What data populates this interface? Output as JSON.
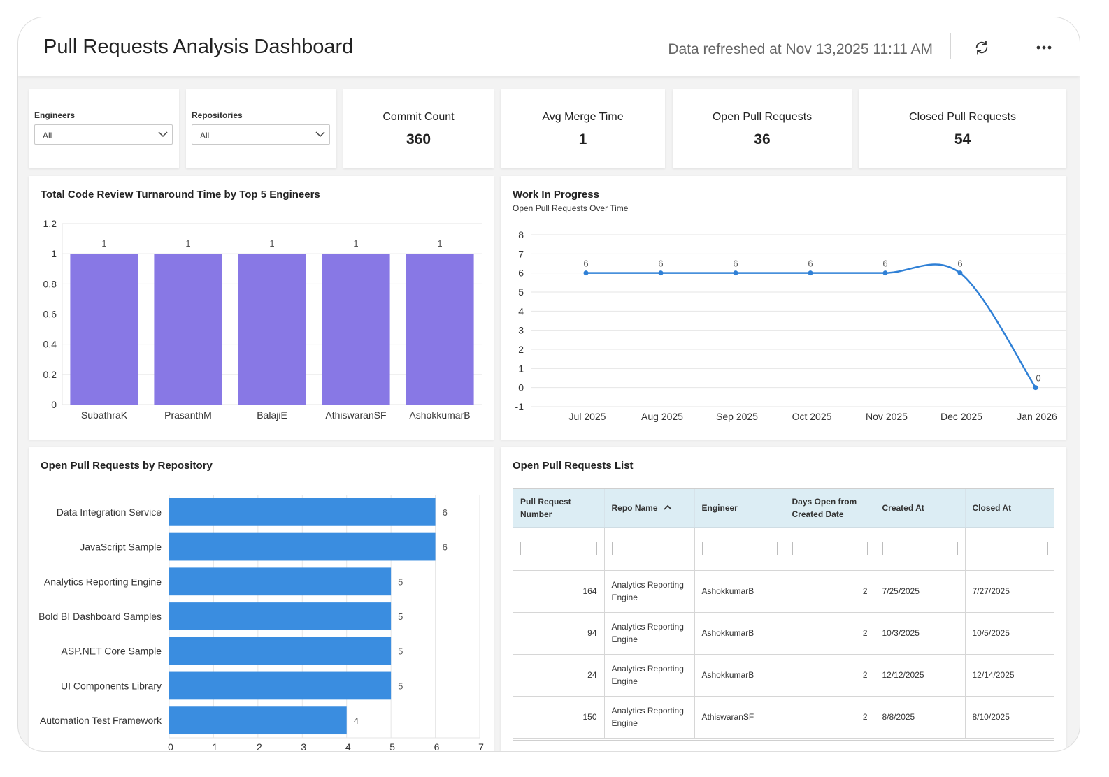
{
  "header": {
    "title": "Pull Requests Analysis Dashboard",
    "refresh_text": "Data refreshed at Nov 13,2025 11:11 AM",
    "refresh_icon": "refresh-icon",
    "more_icon": "more-horizontal-icon"
  },
  "filters": [
    {
      "label": "Engineers",
      "value": "All"
    },
    {
      "label": "Repositories",
      "value": "All"
    }
  ],
  "kpis": [
    {
      "title": "Commit Count",
      "value": "360"
    },
    {
      "title": "Avg Merge Time",
      "value": "1"
    },
    {
      "title": "Open Pull Requests",
      "value": "36"
    },
    {
      "title": "Closed Pull Requests",
      "value": "54"
    }
  ],
  "colors": {
    "bar_purple": "#8878e5",
    "bar_blue": "#3a8de0",
    "line_blue": "#2f80d6",
    "table_header": "#dcedf4"
  },
  "chart_data": [
    {
      "type": "bar",
      "title": "Total Code Review Turnaround Time by Top 5 Engineers",
      "categories": [
        "SubathraK",
        "PrasanthM",
        "BalajiE",
        "AthiswaranSF",
        "AshokkumarB"
      ],
      "values": [
        1,
        1,
        1,
        1,
        1
      ],
      "ylim": [
        0,
        1.2
      ],
      "yticks": [
        "0",
        "0.2",
        "0.4",
        "0.6",
        "0.8",
        "1",
        "1.2"
      ],
      "grid": true
    },
    {
      "type": "line",
      "title": "Work In Progress",
      "subtitle": "Open Pull Requests Over Time",
      "categories": [
        "Jul 2025",
        "Aug 2025",
        "Sep 2025",
        "Oct 2025",
        "Nov 2025",
        "Dec 2025",
        "Jan 2026"
      ],
      "values": [
        6,
        6,
        6,
        6,
        6,
        6,
        0
      ],
      "ylim": [
        -1,
        8
      ],
      "yticks": [
        "-1",
        "0",
        "1",
        "2",
        "3",
        "4",
        "5",
        "6",
        "7",
        "8"
      ],
      "grid": true
    },
    {
      "type": "bar",
      "orientation": "horizontal",
      "title": "Open Pull Requests by Repository",
      "categories": [
        "Data Integration Service",
        "JavaScript Sample",
        "Analytics Reporting Engine",
        "Bold BI Dashboard Samples",
        "ASP.NET Core Sample",
        "UI Components Library",
        "Automation Test Framework"
      ],
      "values": [
        6,
        6,
        5,
        5,
        5,
        5,
        4
      ],
      "xlim": [
        0,
        7
      ],
      "xticks": [
        "0",
        "1",
        "2",
        "3",
        "4",
        "5",
        "6",
        "7"
      ],
      "grid": true
    }
  ],
  "table": {
    "title": "Open Pull Requests List",
    "columns": [
      {
        "label": "Pull Request Number"
      },
      {
        "label": "Repo Name",
        "sort_icon": "chevron-up-icon"
      },
      {
        "label": "Engineer"
      },
      {
        "label": "Days Open from Created Date"
      },
      {
        "label": "Created At"
      },
      {
        "label": "Closed At"
      }
    ],
    "rows": [
      {
        "number": "164",
        "repo": "Analytics Reporting Engine",
        "engineer": "AshokkumarB",
        "days_open": "2",
        "created": "7/25/2025",
        "closed": "7/27/2025"
      },
      {
        "number": "94",
        "repo": "Analytics Reporting Engine",
        "engineer": "AshokkumarB",
        "days_open": "2",
        "created": "10/3/2025",
        "closed": "10/5/2025"
      },
      {
        "number": "24",
        "repo": "Analytics Reporting Engine",
        "engineer": "AshokkumarB",
        "days_open": "2",
        "created": "12/12/2025",
        "closed": "12/14/2025"
      },
      {
        "number": "150",
        "repo": "Analytics Reporting Engine",
        "engineer": "AthiswaranSF",
        "days_open": "2",
        "created": "8/8/2025",
        "closed": "8/10/2025"
      }
    ]
  }
}
